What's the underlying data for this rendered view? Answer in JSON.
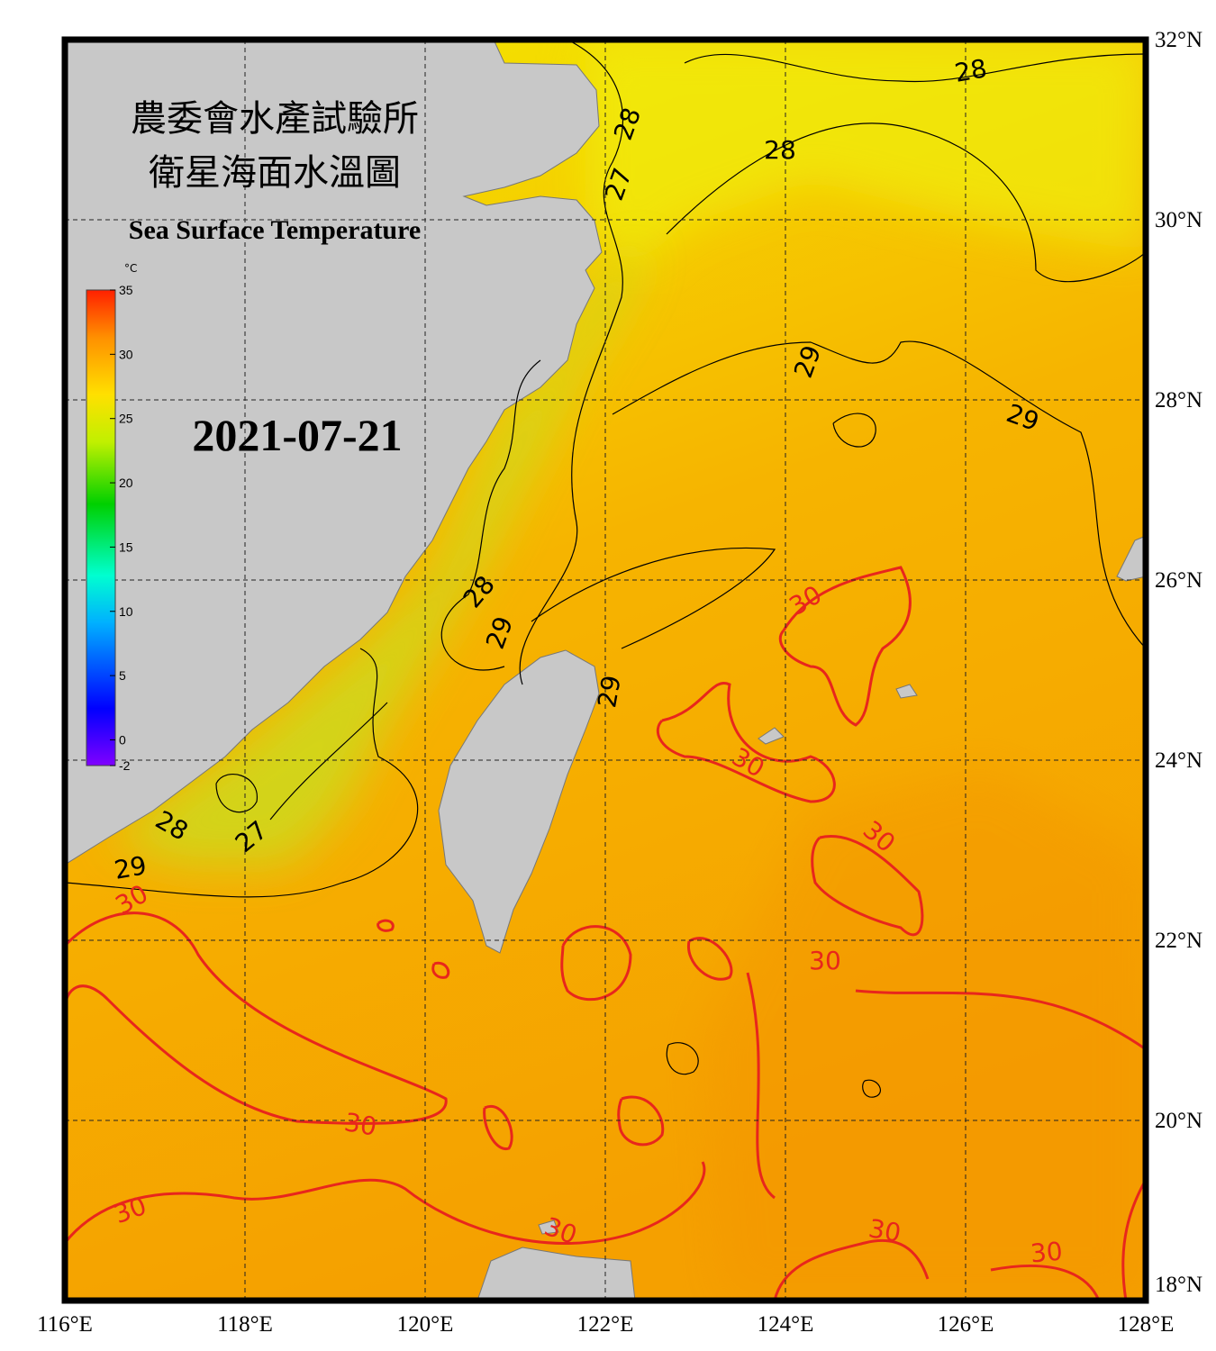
{
  "header": {
    "title_zh_1": "農委會水產試驗所",
    "title_zh_2": "衛星海面水溫圖",
    "title_en": "Sea Surface Temperature"
  },
  "date": "2021-07-21",
  "colorbar": {
    "unit": "°C",
    "range": [
      -2,
      35
    ],
    "ticks": [
      35,
      30,
      25,
      20,
      15,
      10,
      5,
      0,
      -2
    ]
  },
  "map": {
    "xlim": [
      116,
      128
    ],
    "ylim": [
      18,
      32
    ],
    "xticks": [
      {
        "value": 116,
        "label": "116°E"
      },
      {
        "value": 118,
        "label": "118°E"
      },
      {
        "value": 120,
        "label": "120°E"
      },
      {
        "value": 122,
        "label": "122°E"
      },
      {
        "value": 124,
        "label": "124°E"
      },
      {
        "value": 126,
        "label": "126°E"
      },
      {
        "value": 128,
        "label": "128°E"
      }
    ],
    "yticks": [
      {
        "value": 32,
        "label": "32°N"
      },
      {
        "value": 30,
        "label": "30°N"
      },
      {
        "value": 28,
        "label": "28°N"
      },
      {
        "value": 26,
        "label": "26°N"
      },
      {
        "value": 24,
        "label": "24°N"
      },
      {
        "value": 22,
        "label": "22°N"
      },
      {
        "value": 20,
        "label": "20°N"
      },
      {
        "value": 18,
        "label": "18°N"
      }
    ]
  },
  "contour_labels": [
    {
      "text": "28",
      "color": "#000000"
    },
    {
      "text": "28",
      "color": "#000000"
    },
    {
      "text": "28",
      "color": "#000000"
    },
    {
      "text": "27",
      "color": "#000000"
    },
    {
      "text": "29",
      "color": "#000000"
    },
    {
      "text": "29",
      "color": "#000000"
    },
    {
      "text": "28",
      "color": "#000000"
    },
    {
      "text": "29",
      "color": "#000000"
    },
    {
      "text": "29",
      "color": "#000000"
    },
    {
      "text": "30",
      "color": "#e8261c"
    },
    {
      "text": "30",
      "color": "#e8261c"
    },
    {
      "text": "30",
      "color": "#e8261c"
    },
    {
      "text": "28",
      "color": "#000000"
    },
    {
      "text": "27",
      "color": "#000000"
    },
    {
      "text": "29",
      "color": "#000000"
    },
    {
      "text": "30",
      "color": "#e8261c"
    },
    {
      "text": "30",
      "color": "#e8261c"
    },
    {
      "text": "30",
      "color": "#e8261c"
    },
    {
      "text": "30",
      "color": "#e8261c"
    },
    {
      "text": "30",
      "color": "#e8261c"
    },
    {
      "text": "30",
      "color": "#e8261c"
    },
    {
      "text": "30",
      "color": "#e8261c"
    }
  ]
}
